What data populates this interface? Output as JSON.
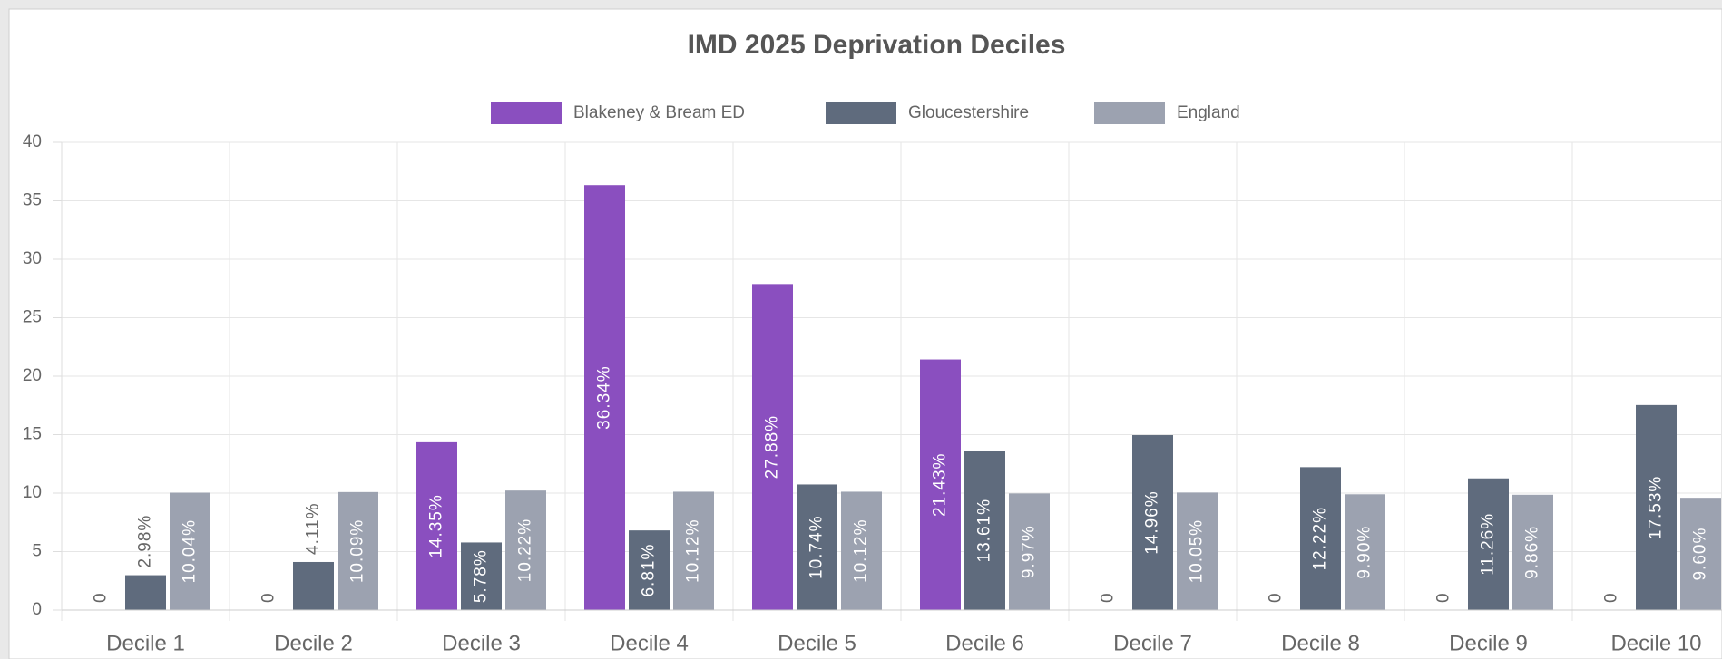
{
  "chart_data": {
    "type": "bar",
    "title": "IMD 2025 Deprivation Deciles",
    "categories": [
      "Decile 1",
      "Decile 2",
      "Decile 3",
      "Decile 4",
      "Decile 5",
      "Decile 6",
      "Decile 7",
      "Decile 8",
      "Decile 9",
      "Decile 10"
    ],
    "series": [
      {
        "name": "Blakeney & Bream ED",
        "color": "#8a4fbf",
        "values": [
          0,
          0,
          14.35,
          36.34,
          27.88,
          21.43,
          0,
          0,
          0,
          0
        ],
        "value_labels": [
          "0",
          "0",
          "14.35%",
          "36.34%",
          "27.88%",
          "21.43%",
          "0",
          "0",
          "0",
          "0"
        ]
      },
      {
        "name": "Gloucestershire",
        "color": "#5f6b7d",
        "values": [
          2.98,
          4.11,
          5.78,
          6.81,
          10.74,
          13.61,
          14.96,
          12.22,
          11.26,
          17.53
        ],
        "value_labels": [
          "2.98%",
          "4.11%",
          "5.78%",
          "6.81%",
          "10.74%",
          "13.61%",
          "14.96%",
          "12.22%",
          "11.26%",
          "17.53%"
        ]
      },
      {
        "name": "England",
        "color": "#9ca2b0",
        "values": [
          10.04,
          10.09,
          10.22,
          10.12,
          10.12,
          9.97,
          10.05,
          9.9,
          9.86,
          9.6
        ],
        "value_labels": [
          "10.04%",
          "10.09%",
          "10.22%",
          "10.12%",
          "10.12%",
          "9.97%",
          "10.05%",
          "9.90%",
          "9.86%",
          "9.60%"
        ]
      }
    ],
    "ylim": [
      0,
      40
    ],
    "yticks": [
      0,
      5,
      10,
      15,
      20,
      25,
      30,
      35,
      40
    ],
    "grid": true,
    "legend": "top"
  }
}
